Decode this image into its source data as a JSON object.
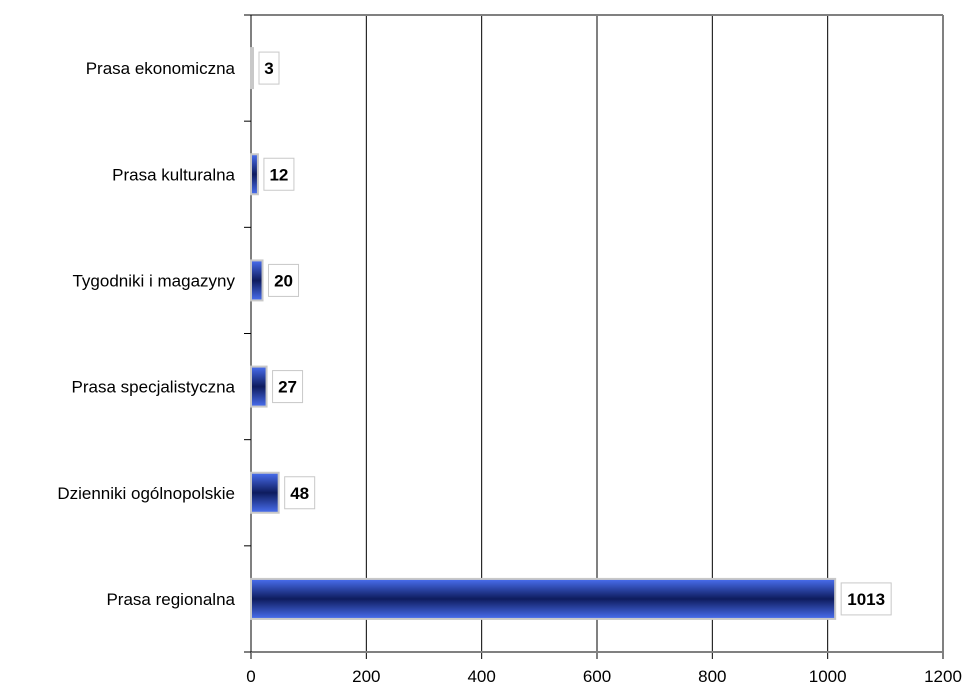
{
  "chart_data": {
    "type": "bar",
    "orientation": "horizontal",
    "categories": [
      "Prasa ekonomiczna",
      "Prasa kulturalna",
      "Tygodniki i magazyny",
      "Prasa specjalistyczna",
      "Dzienniki ogólnopolskie",
      "Prasa regionalna"
    ],
    "values": [
      3,
      12,
      20,
      27,
      48,
      1013
    ],
    "xlim": [
      0,
      1200
    ],
    "x_ticks": [
      "0",
      "200",
      "400",
      "600",
      "800",
      "1000",
      "1200"
    ],
    "data_labels": [
      "3",
      "12",
      "20",
      "27",
      "48",
      "1013"
    ],
    "title": "",
    "xlabel": "",
    "ylabel": "",
    "grid": "vertical",
    "legend": "none",
    "colors": {
      "bar_edge": "#1a2f80",
      "bar_mid": "#3a5fe0",
      "bar_core": "#0c1a5a",
      "grid": "#000000",
      "frame": "#808080"
    }
  }
}
